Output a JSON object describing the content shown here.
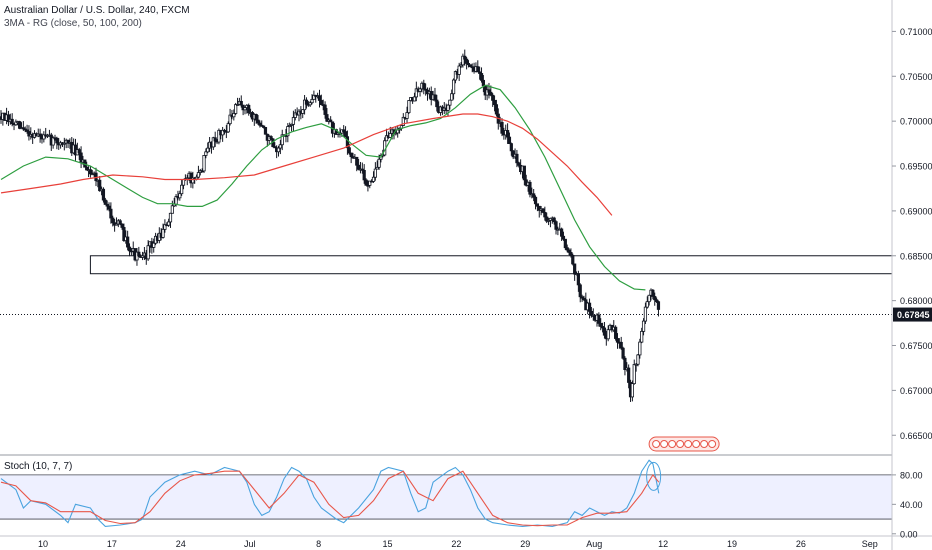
{
  "header": {
    "title": "Australian Dollar / U.S. Dollar, 240, FXCM",
    "indicator": "3MA - RG (close, 50, 100, 200)",
    "stoch_label": "Stoch (10, 7, 7)"
  },
  "colors": {
    "candle": "#131722",
    "ma_green": "#2e9e40",
    "ma_red": "#e8403a",
    "stoch_k": "#4aa3df",
    "stoch_d": "#e8574a",
    "zone_border": "#131722",
    "badge": "#e8574a",
    "last_price_bg": "#131722"
  },
  "chart_data": [
    {
      "type": "candlestick",
      "title": "Australian Dollar / U.S. Dollar, 240, FXCM",
      "x_tick_labels": [
        "10",
        "17",
        "24",
        "Jul",
        "8",
        "15",
        "22",
        "29",
        "Aug",
        "12",
        "19",
        "26",
        "Sep"
      ],
      "y_tick_labels": [
        "0.71000",
        "0.70500",
        "0.70000",
        "0.69500",
        "0.69000",
        "0.68500",
        "0.68000",
        "0.67500",
        "0.67000",
        "0.66500"
      ],
      "ylim": [
        0.6628,
        0.7135
      ],
      "last_price": 0.67845,
      "last_price_label": "0.67845",
      "zone": {
        "low": 0.683,
        "high": 0.685,
        "from_x": 12
      },
      "ohlc_path": [
        [
          0,
          0.7005
        ],
        [
          3,
          0.699
        ],
        [
          6,
          0.698
        ],
        [
          9,
          0.6975
        ],
        [
          11,
          0.6955
        ],
        [
          13,
          0.6935
        ],
        [
          14,
          0.6905
        ],
        [
          16,
          0.688
        ],
        [
          18,
          0.685
        ],
        [
          19,
          0.6845
        ],
        [
          20,
          0.686
        ],
        [
          21,
          0.687
        ],
        [
          22,
          0.688
        ],
        [
          23,
          0.69
        ],
        [
          24,
          0.6925
        ],
        [
          25,
          0.694
        ],
        [
          26,
          0.693
        ],
        [
          27,
          0.695
        ],
        [
          28,
          0.6975
        ],
        [
          30,
          0.699
        ],
        [
          32,
          0.702
        ],
        [
          34,
          0.7005
        ],
        [
          36,
          0.698
        ],
        [
          37,
          0.696
        ],
        [
          38,
          0.6985
        ],
        [
          40,
          0.701
        ],
        [
          42,
          0.703
        ],
        [
          43,
          0.702
        ],
        [
          44,
          0.7
        ],
        [
          45,
          0.698
        ],
        [
          46,
          0.699
        ],
        [
          47,
          0.696
        ],
        [
          48,
          0.695
        ],
        [
          49,
          0.693
        ],
        [
          50,
          0.694
        ],
        [
          51,
          0.696
        ],
        [
          52,
          0.6985
        ],
        [
          54,
          0.7
        ],
        [
          55,
          0.7025
        ],
        [
          57,
          0.704
        ],
        [
          58,
          0.7025
        ],
        [
          59,
          0.701
        ],
        [
          60,
          0.702
        ],
        [
          61,
          0.705
        ],
        [
          62,
          0.707
        ],
        [
          64,
          0.7055
        ],
        [
          65,
          0.7035
        ],
        [
          66,
          0.702
        ],
        [
          67,
          0.6995
        ],
        [
          68,
          0.6985
        ],
        [
          69,
          0.696
        ],
        [
          70,
          0.6945
        ],
        [
          71,
          0.692
        ],
        [
          72,
          0.6905
        ],
        [
          73,
          0.6895
        ],
        [
          75,
          0.688
        ],
        [
          76,
          0.686
        ],
        [
          77,
          0.6835
        ],
        [
          78,
          0.68
        ],
        [
          80,
          0.678
        ],
        [
          81,
          0.676
        ],
        [
          82,
          0.677
        ],
        [
          83,
          0.6755
        ],
        [
          84,
          0.672
        ],
        [
          84.5,
          0.669
        ],
        [
          85,
          0.6725
        ],
        [
          86,
          0.6765
        ],
        [
          86.8,
          0.68
        ],
        [
          87.5,
          0.681
        ],
        [
          88.3,
          0.6795
        ]
      ],
      "series": [
        {
          "name": "",
          "period": 50,
          "points": [
            [
              0,
              0.6935
            ],
            [
              3,
              0.695
            ],
            [
              6,
              0.696
            ],
            [
              9,
              0.6958
            ],
            [
              12,
              0.695
            ],
            [
              15,
              0.6935
            ],
            [
              17,
              0.6925
            ],
            [
              19,
              0.6915
            ],
            [
              21,
              0.6908
            ],
            [
              23,
              0.6908
            ],
            [
              25,
              0.6905
            ],
            [
              27,
              0.6905
            ],
            [
              29,
              0.6912
            ],
            [
              31,
              0.693
            ],
            [
              33,
              0.695
            ],
            [
              35,
              0.6968
            ],
            [
              37,
              0.698
            ],
            [
              39,
              0.6988
            ],
            [
              41,
              0.6993
            ],
            [
              43,
              0.6997
            ],
            [
              45,
              0.699
            ],
            [
              47,
              0.6975
            ],
            [
              49,
              0.6962
            ],
            [
              51,
              0.696
            ],
            [
              53,
              0.699
            ],
            [
              55,
              0.6995
            ],
            [
              57,
              0.6998
            ],
            [
              59,
              0.7003
            ],
            [
              61,
              0.7015
            ],
            [
              63,
              0.703
            ],
            [
              65,
              0.704
            ],
            [
              67,
              0.7035
            ],
            [
              69,
              0.7015
            ],
            [
              71,
              0.699
            ],
            [
              73,
              0.696
            ],
            [
              75,
              0.6925
            ],
            [
              77,
              0.689
            ],
            [
              79,
              0.686
            ],
            [
              81,
              0.6838
            ],
            [
              83,
              0.6822
            ],
            [
              85,
              0.6813
            ],
            [
              86.5,
              0.6812
            ]
          ]
        },
        {
          "name": "",
          "period": 100,
          "points": [
            [
              0,
              0.692
            ],
            [
              4,
              0.6925
            ],
            [
              8,
              0.693
            ],
            [
              11,
              0.6935
            ],
            [
              15,
              0.694
            ],
            [
              19,
              0.6938
            ],
            [
              22,
              0.6935
            ],
            [
              26,
              0.6935
            ],
            [
              30,
              0.6937
            ],
            [
              34,
              0.694
            ],
            [
              38,
              0.695
            ],
            [
              42,
              0.696
            ],
            [
              46,
              0.697
            ],
            [
              50,
              0.6985
            ],
            [
              54,
              0.6997
            ],
            [
              58,
              0.7003
            ],
            [
              62,
              0.7008
            ],
            [
              64,
              0.7008
            ],
            [
              66,
              0.7005
            ],
            [
              68,
              0.7
            ],
            [
              70,
              0.6992
            ],
            [
              72,
              0.698
            ],
            [
              74,
              0.6965
            ],
            [
              76,
              0.695
            ],
            [
              78,
              0.6932
            ],
            [
              80,
              0.6915
            ],
            [
              82,
              0.6895
            ]
          ]
        }
      ]
    },
    {
      "type": "line",
      "title": "Stoch (10, 7, 7)",
      "y_tick_labels": [
        "80.00",
        "40.00",
        "0.00"
      ],
      "ylim": [
        -3,
        107
      ],
      "overbought": 80,
      "oversold": 20,
      "series": [
        {
          "name": "",
          "points": [
            [
              0,
              75
            ],
            [
              2,
              60
            ],
            [
              3,
              35
            ],
            [
              4,
              45
            ],
            [
              6,
              40
            ],
            [
              8,
              25
            ],
            [
              9,
              15
            ],
            [
              10,
              40
            ],
            [
              12,
              35
            ],
            [
              13,
              20
            ],
            [
              14,
              10
            ],
            [
              16,
              12
            ],
            [
              18,
              15
            ],
            [
              19,
              20
            ],
            [
              20,
              50
            ],
            [
              22,
              70
            ],
            [
              24,
              80
            ],
            [
              26,
              85
            ],
            [
              28,
              80
            ],
            [
              30,
              90
            ],
            [
              32,
              85
            ],
            [
              33,
              70
            ],
            [
              34,
              40
            ],
            [
              35,
              25
            ],
            [
              36,
              30
            ],
            [
              37,
              50
            ],
            [
              38,
              75
            ],
            [
              39,
              90
            ],
            [
              40,
              85
            ],
            [
              41,
              75
            ],
            [
              42,
              50
            ],
            [
              43,
              35
            ],
            [
              45,
              20
            ],
            [
              46,
              15
            ],
            [
              48,
              35
            ],
            [
              50,
              60
            ],
            [
              51,
              85
            ],
            [
              52,
              90
            ],
            [
              54,
              85
            ],
            [
              55,
              55
            ],
            [
              56,
              30
            ],
            [
              57,
              35
            ],
            [
              58,
              70
            ],
            [
              60,
              85
            ],
            [
              61,
              90
            ],
            [
              62,
              80
            ],
            [
              63,
              60
            ],
            [
              64,
              35
            ],
            [
              65,
              20
            ],
            [
              66,
              15
            ],
            [
              68,
              12
            ],
            [
              70,
              10
            ],
            [
              72,
              12
            ],
            [
              74,
              10
            ],
            [
              76,
              15
            ],
            [
              77,
              30
            ],
            [
              78,
              25
            ],
            [
              79,
              35
            ],
            [
              80,
              30
            ],
            [
              81,
              25
            ],
            [
              82,
              30
            ],
            [
              83,
              28
            ],
            [
              84,
              35
            ],
            [
              85,
              55
            ],
            [
              86,
              85
            ],
            [
              87,
              100
            ],
            [
              87.5,
              95
            ],
            [
              88.3,
              55
            ]
          ]
        },
        {
          "name": "",
          "points": [
            [
              0,
              70
            ],
            [
              2,
              65
            ],
            [
              4,
              45
            ],
            [
              6,
              42
            ],
            [
              8,
              30
            ],
            [
              10,
              30
            ],
            [
              12,
              30
            ],
            [
              14,
              18
            ],
            [
              16,
              14
            ],
            [
              18,
              15
            ],
            [
              20,
              30
            ],
            [
              22,
              55
            ],
            [
              24,
              72
            ],
            [
              26,
              80
            ],
            [
              28,
              82
            ],
            [
              30,
              85
            ],
            [
              32,
              85
            ],
            [
              34,
              60
            ],
            [
              36,
              35
            ],
            [
              38,
              55
            ],
            [
              40,
              80
            ],
            [
              42,
              70
            ],
            [
              44,
              40
            ],
            [
              46,
              22
            ],
            [
              48,
              25
            ],
            [
              50,
              45
            ],
            [
              52,
              75
            ],
            [
              54,
              85
            ],
            [
              56,
              55
            ],
            [
              58,
              45
            ],
            [
              60,
              75
            ],
            [
              62,
              85
            ],
            [
              64,
              55
            ],
            [
              66,
              25
            ],
            [
              68,
              15
            ],
            [
              70,
              12
            ],
            [
              72,
              11
            ],
            [
              74,
              12
            ],
            [
              76,
              12
            ],
            [
              78,
              22
            ],
            [
              80,
              28
            ],
            [
              82,
              28
            ],
            [
              84,
              30
            ],
            [
              86,
              55
            ],
            [
              87.5,
              80
            ],
            [
              88.3,
              70
            ]
          ]
        }
      ]
    }
  ]
}
